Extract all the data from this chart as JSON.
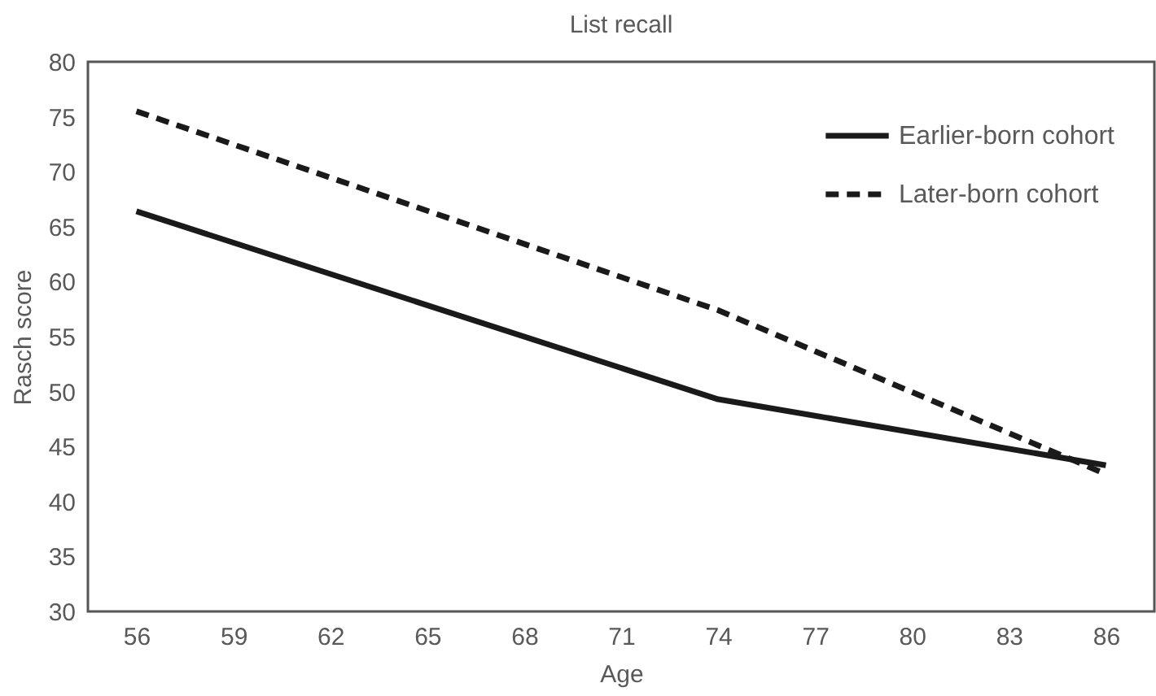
{
  "chart_data": {
    "type": "line",
    "title": "List recall",
    "xlabel": "Age",
    "ylabel": "Rasch score",
    "xlim": [
      54.5,
      87.5
    ],
    "xticks": [
      56,
      59,
      62,
      65,
      68,
      71,
      74,
      77,
      80,
      83,
      86
    ],
    "ylim": [
      30,
      80
    ],
    "yticks": [
      30,
      35,
      40,
      45,
      50,
      55,
      60,
      65,
      70,
      75,
      80
    ],
    "x": [
      56,
      74,
      86
    ],
    "series": [
      {
        "name": "Earlier-born cohort",
        "color": "#1a1a1a",
        "line_style": "solid",
        "values": [
          66.4,
          49.3,
          43.3
        ]
      },
      {
        "name": "Later-born cohort",
        "color": "#1a1a1a",
        "line_style": "dashed",
        "values": [
          75.5,
          57.4,
          42.5
        ]
      }
    ],
    "grid": false,
    "legend": "top right",
    "marker": "none"
  }
}
